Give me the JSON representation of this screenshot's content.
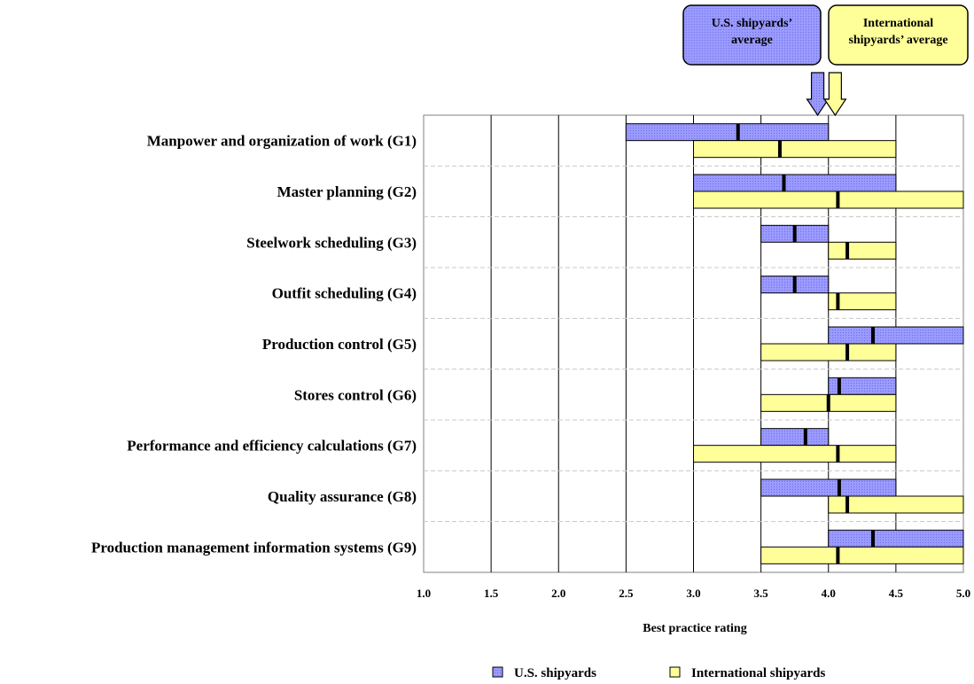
{
  "chart_data": {
    "type": "range-bar",
    "title": "",
    "xlabel": "Best practice rating",
    "ylabel": "",
    "xlim": [
      1.0,
      5.0
    ],
    "x_ticks": [
      "1.0",
      "1.5",
      "2.0",
      "2.5",
      "3.0",
      "3.5",
      "4.0",
      "4.5",
      "5.0"
    ],
    "grid": "vertical",
    "legend_position": "bottom",
    "categories": [
      "Manpower and organization of work (G1)",
      "Master planning (G2)",
      "Steelwork scheduling (G3)",
      "Outfit scheduling (G4)",
      "Production control (G5)",
      "Stores control (G6)",
      "Performance and efficiency calculations (G7)",
      "Quality assurance (G8)",
      "Production management information systems (G9)"
    ],
    "series": [
      {
        "name": "U.S. shipyards",
        "color": "#9999ff",
        "ranges": [
          [
            2.5,
            4.0
          ],
          [
            3.0,
            4.5
          ],
          [
            3.5,
            4.0
          ],
          [
            3.5,
            4.0
          ],
          [
            4.0,
            5.0
          ],
          [
            4.0,
            4.5
          ],
          [
            3.5,
            4.0
          ],
          [
            3.5,
            4.5
          ],
          [
            4.0,
            5.0
          ]
        ],
        "averages": [
          3.33,
          3.67,
          3.75,
          3.75,
          4.33,
          4.08,
          3.83,
          4.08,
          4.33
        ]
      },
      {
        "name": "International shipyards",
        "color": "#ffff99",
        "ranges": [
          [
            3.0,
            4.5
          ],
          [
            3.0,
            5.0
          ],
          [
            4.0,
            4.5
          ],
          [
            4.0,
            4.5
          ],
          [
            3.5,
            4.5
          ],
          [
            3.5,
            4.5
          ],
          [
            3.0,
            4.5
          ],
          [
            4.0,
            5.0
          ],
          [
            3.5,
            5.0
          ]
        ],
        "averages": [
          3.64,
          4.07,
          4.14,
          4.07,
          4.14,
          4.0,
          4.07,
          4.14,
          4.07
        ]
      }
    ],
    "callouts": [
      {
        "text_lines": [
          "U.S. shipyards’",
          "average"
        ],
        "color": "#7b7bf0",
        "points_to": 3.92
      },
      {
        "text_lines": [
          "International",
          "shipyards’ average"
        ],
        "color": "#ffff99",
        "points_to": 4.05
      }
    ]
  }
}
